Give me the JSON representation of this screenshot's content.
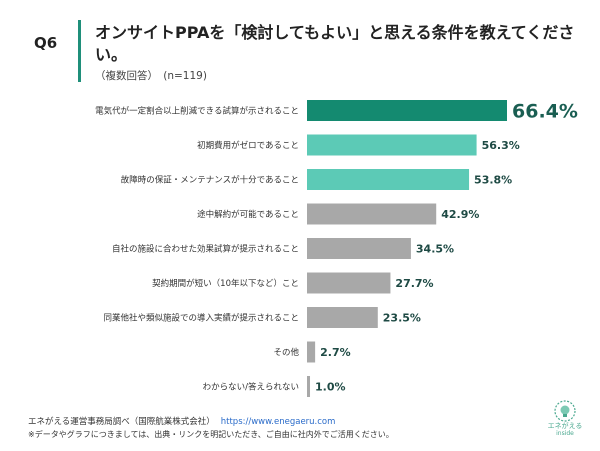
{
  "header": {
    "question_no": "Q6",
    "title": "オンサイトPPAを「検討してもよい」と思える条件を教えてください。",
    "subtitle": "（複数回答）　(n=119)"
  },
  "colors": {
    "accent": "#1f8f7a",
    "top_bar": "#148a70",
    "teal_bar": "#5ccab6",
    "gray_bar": "#a8a8a8",
    "label": "#1e4a44"
  },
  "chart_data": {
    "type": "bar",
    "orientation": "horizontal",
    "categories": [
      "電気代が一定割合以上削減できる試算が示されること",
      "初期費用がゼロであること",
      "故障時の保証・メンテナンスが十分であること",
      "途中解約が可能であること",
      "自社の施設に合わせた効果試算が提示されること",
      "契約期間が短い（10年以下など）こと",
      "同業他社や類似施設での導入実績が提示されること",
      "その他",
      "わからない/答えられない"
    ],
    "values": [
      66.4,
      56.3,
      53.8,
      42.9,
      34.5,
      27.7,
      23.5,
      2.7,
      1.0
    ],
    "value_labels": [
      "66.4%",
      "56.3%",
      "53.8%",
      "42.9%",
      "34.5%",
      "27.7%",
      "23.5%",
      "2.7%",
      "1.0%"
    ],
    "bar_colors": [
      "#148a70",
      "#5ccab6",
      "#5ccab6",
      "#a8a8a8",
      "#a8a8a8",
      "#a8a8a8",
      "#a8a8a8",
      "#a8a8a8",
      "#a8a8a8"
    ],
    "xlim": [
      0,
      66.4
    ],
    "grid": false
  },
  "footer": {
    "source": "エネがえる運営事務局調べ（国際航業株式会社）",
    "source_url": "https://www.enegaeru.com",
    "note": "※データやグラフにつきましては、出典・リンクを明記いただき、ご自由に社内外でご活用ください。",
    "logo_text": "エネがえる",
    "logo_sub": "inside"
  }
}
